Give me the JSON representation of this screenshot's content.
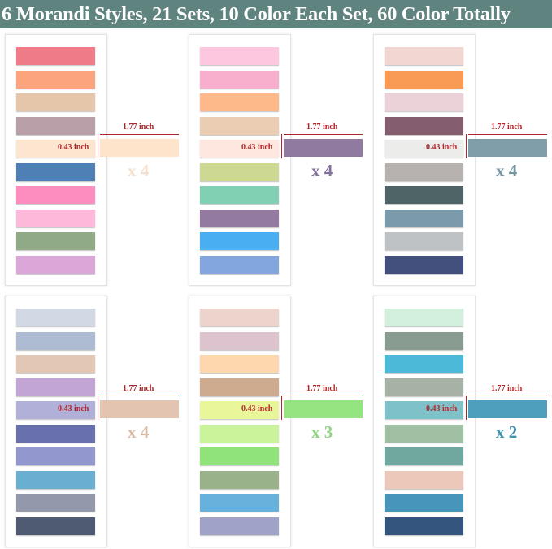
{
  "title": "6 Morandi Styles, 21 Sets, 10 Color Each Set, 60 Color Totally",
  "dimensions": {
    "width_label": "1.77 inch",
    "height_label": "0.43 inch"
  },
  "panels": [
    {
      "colors": [
        "#ef7b88",
        "#fca47e",
        "#e5c6ab",
        "#b9a0a8",
        "#fce6cf",
        "#4e7fb5",
        "#fd8dbf",
        "#feb8d9",
        "#90aa86",
        "#dba6d8"
      ],
      "side_color": "#fde4cb",
      "multiplier": "x 4",
      "multiplier_color": "#f3dfca"
    },
    {
      "colors": [
        "#fdc7df",
        "#f8aecd",
        "#feb98b",
        "#ebcdb3",
        "#fde7de",
        "#cdd992",
        "#82d0b3",
        "#937aa1",
        "#4aaef2",
        "#84a6de"
      ],
      "side_color": "#907aa0",
      "multiplier": "x 4",
      "multiplier_color": "#84709a"
    },
    {
      "colors": [
        "#f2d6d1",
        "#f99a55",
        "#ebd1d8",
        "#845e6f",
        "#ececea",
        "#b7b1b0",
        "#4e6467",
        "#7b9aab",
        "#bfc2c5",
        "#434f7c"
      ],
      "side_color": "#7f9ea9",
      "multiplier": "x 4",
      "multiplier_color": "#7693a0"
    },
    {
      "colors": [
        "#d2d8e4",
        "#adbbd3",
        "#e3c7b5",
        "#c2a5d4",
        "#b1b0d8",
        "#6870ae",
        "#9297ce",
        "#6aaed1",
        "#9399ab",
        "#4e5b72"
      ],
      "side_color": "#e3c4b0",
      "multiplier": "x 4",
      "multiplier_color": "#d9bba6"
    },
    {
      "colors": [
        "#ecd4cd",
        "#dcc3cd",
        "#ffd7ae",
        "#ceaa8e",
        "#e9f69a",
        "#c9f49c",
        "#8fe37a",
        "#9ab289",
        "#68b1dc",
        "#a0a2c7"
      ],
      "side_color": "#94e482",
      "multiplier": "x 3",
      "multiplier_color": "#8fd47f"
    },
    {
      "colors": [
        "#d3f0df",
        "#889c92",
        "#4db9d8",
        "#a7b2a7",
        "#7fc1c9",
        "#a0c0a4",
        "#70a8a0",
        "#ecc8bb",
        "#4796b9",
        "#33557e"
      ],
      "side_color": "#4e9fbd",
      "multiplier": "x 2",
      "multiplier_color": "#3f8fae"
    }
  ]
}
